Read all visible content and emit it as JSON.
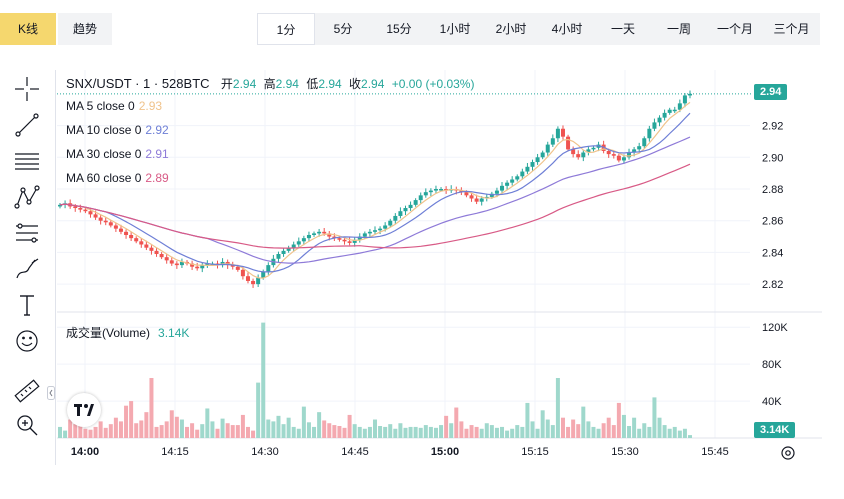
{
  "header": {
    "tabs": [
      {
        "label": "K线",
        "active": true
      },
      {
        "label": "趋势",
        "active": false
      }
    ],
    "intervals": [
      "1分",
      "5分",
      "15分",
      "1小时",
      "2小时",
      "4小时",
      "一天",
      "一周",
      "一个月",
      "三个月"
    ],
    "active_interval": "1分"
  },
  "legend": {
    "symbol": "SNX/USDT · 1 · 528BTC",
    "open_label": "开",
    "open": "2.94",
    "high_label": "高",
    "high": "2.94",
    "low_label": "低",
    "low": "2.94",
    "close_label": "收",
    "close": "2.94",
    "change": "+0.00 (+0.03%)",
    "ma": [
      {
        "label": "MA 5 close 0",
        "value": "2.93",
        "color": "#f0c38b"
      },
      {
        "label": "MA 10 close 0",
        "value": "2.92",
        "color": "#6e7fd6"
      },
      {
        "label": "MA 30 close 0",
        "value": "2.91",
        "color": "#8e7ad8"
      },
      {
        "label": "MA 60 close 0",
        "value": "2.89",
        "color": "#d85a86"
      }
    ],
    "volume_label": "成交量(Volume)",
    "volume_value": "3.14K"
  },
  "colors": {
    "up": "#26a69a",
    "down": "#ef5350",
    "up_vol": "#9fd8cc",
    "down_vol": "#f4a9b0",
    "accent": "#f5d76e"
  },
  "price_axis": {
    "labels": [
      "2.92",
      "2.90",
      "2.88",
      "2.86",
      "2.84",
      "2.82"
    ],
    "last": "2.94"
  },
  "volume_axis": {
    "labels": [
      "120K",
      "80K",
      "40K"
    ],
    "last": "3.14K"
  },
  "time_axis": {
    "labels": [
      "14:00",
      "14:15",
      "14:30",
      "14:45",
      "15:00",
      "15:15",
      "15:30",
      "15:45"
    ],
    "bold": [
      "14:00",
      "15:00"
    ]
  },
  "tools": [
    "crosshair-icon",
    "trend-line-icon",
    "horizontal-lines-icon",
    "pattern-icon",
    "fib-icon",
    "brush-icon",
    "text-icon",
    "emoji-icon",
    "ruler-icon",
    "zoom-icon"
  ],
  "chart_data": {
    "type": "candlestick",
    "note_series": [
      "price",
      "volume"
    ],
    "price_ylim": [
      2.81,
      2.95
    ],
    "volume_ylim": [
      0,
      130000
    ],
    "start_time": "13:59",
    "closes": [
      2.87,
      2.871,
      2.869,
      2.868,
      2.867,
      2.866,
      2.864,
      2.862,
      2.86,
      2.859,
      2.857,
      2.855,
      2.853,
      2.851,
      2.849,
      2.847,
      2.845,
      2.843,
      2.841,
      2.839,
      2.837,
      2.835,
      2.833,
      2.832,
      2.834,
      2.833,
      2.831,
      2.83,
      2.832,
      2.833,
      2.833,
      2.832,
      2.834,
      2.832,
      2.831,
      2.829,
      2.825,
      2.822,
      2.82,
      2.824,
      2.828,
      2.832,
      2.836,
      2.839,
      2.841,
      2.843,
      2.845,
      2.847,
      2.849,
      2.851,
      2.852,
      2.853,
      2.852,
      2.85,
      2.849,
      2.848,
      2.847,
      2.846,
      2.848,
      2.85,
      2.852,
      2.853,
      2.854,
      2.855,
      2.857,
      2.86,
      2.863,
      2.866,
      2.868,
      2.87,
      2.873,
      2.876,
      2.878,
      2.879,
      2.88,
      2.88,
      2.879,
      2.88,
      2.879,
      2.878,
      2.876,
      2.874,
      2.872,
      2.874,
      2.875,
      2.877,
      2.879,
      2.882,
      2.884,
      2.886,
      2.888,
      2.891,
      2.894,
      2.897,
      2.9,
      2.903,
      2.908,
      2.912,
      2.918,
      2.913,
      2.905,
      2.902,
      2.9,
      2.903,
      2.905,
      2.906,
      2.908,
      2.904,
      2.902,
      2.901,
      2.898,
      2.9,
      2.903,
      2.905,
      2.907,
      2.912,
      2.918,
      2.922,
      2.925,
      2.928,
      2.93,
      2.93,
      2.934,
      2.939,
      2.94
    ],
    "volumes": [
      12000,
      8000,
      20000,
      15000,
      14000,
      10000,
      9000,
      12000,
      18000,
      11000,
      15000,
      22000,
      18000,
      35000,
      40000,
      16000,
      19000,
      28000,
      65000,
      12000,
      14000,
      18000,
      30000,
      23000,
      20000,
      12000,
      16000,
      9000,
      15000,
      32000,
      18000,
      10000,
      21000,
      16000,
      14000,
      14000,
      25000,
      12000,
      8000,
      60000,
      125000,
      20000,
      18000,
      24000,
      15000,
      22000,
      12000,
      10000,
      34000,
      17000,
      12000,
      28000,
      19000,
      16000,
      14000,
      13000,
      11000,
      25000,
      15000,
      12000,
      10000,
      12000,
      20000,
      13000,
      12000,
      15000,
      10000,
      16000,
      11000,
      12000,
      12000,
      11000,
      14000,
      12000,
      11000,
      14000,
      24000,
      16000,
      33000,
      18000,
      10000,
      14000,
      12000,
      10000,
      16000,
      14000,
      11000,
      12000,
      8000,
      10000,
      14000,
      12000,
      38000,
      18000,
      10000,
      30000,
      20000,
      14000,
      65000,
      22000,
      12000,
      20000,
      15000,
      34000,
      18000,
      12000,
      10000,
      16000,
      22000,
      14000,
      38000,
      25000,
      13000,
      22000,
      10000,
      16000,
      12000,
      44000,
      22000,
      14000,
      10000,
      12000,
      8000,
      10000,
      3140
    ]
  }
}
